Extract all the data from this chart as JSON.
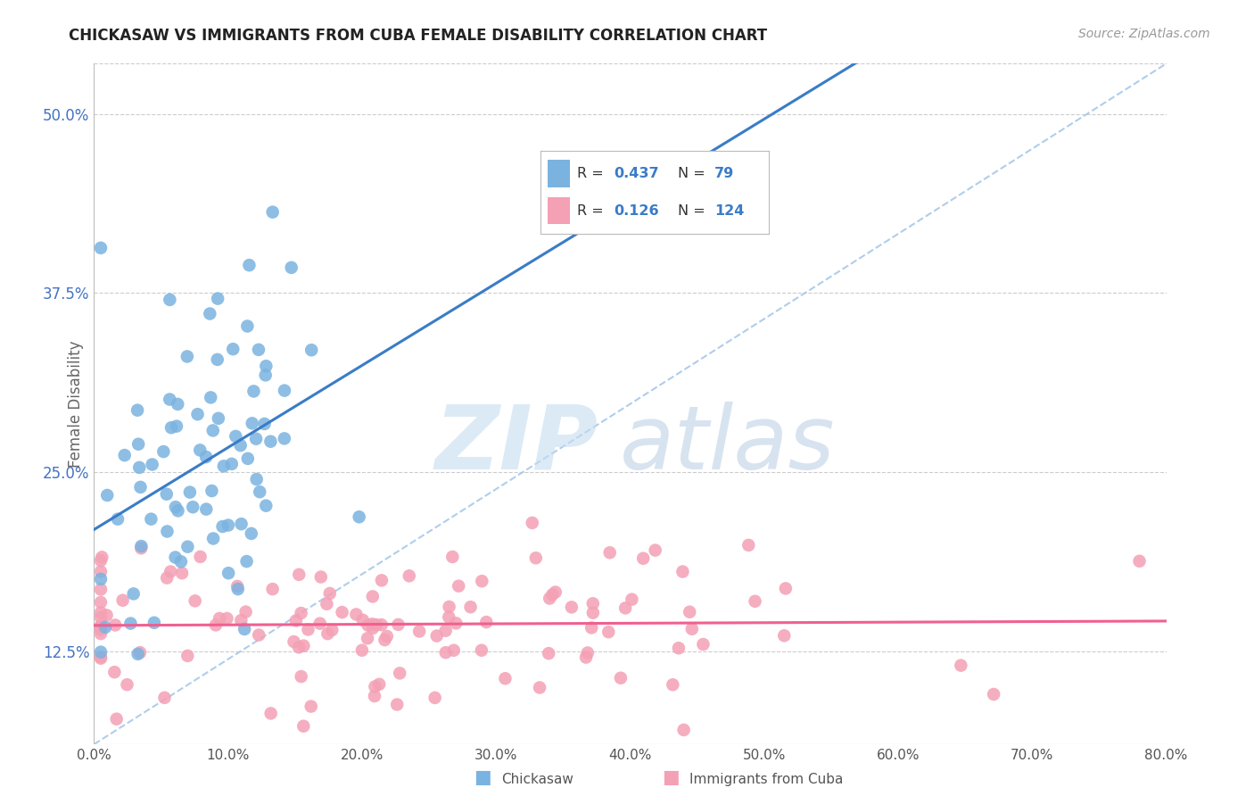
{
  "title": "CHICKASAW VS IMMIGRANTS FROM CUBA FEMALE DISABILITY CORRELATION CHART",
  "source": "Source: ZipAtlas.com",
  "ylabel": "Female Disability",
  "ytick_vals": [
    0.125,
    0.25,
    0.375,
    0.5
  ],
  "xmin": 0.0,
  "xmax": 0.8,
  "ymin": 0.06,
  "ymax": 0.535,
  "chickasaw_color": "#7ab3e0",
  "cuba_color": "#f4a0b5",
  "chickasaw_line_color": "#3a7cc7",
  "cuba_line_color": "#f06090",
  "dashed_line_color": "#a8c8e8",
  "R_chickasaw": 0.437,
  "N_chickasaw": 79,
  "R_cuba": 0.126,
  "N_cuba": 124,
  "legend_label_1": "Chickasaw",
  "legend_label_2": "Immigrants from Cuba",
  "watermark_zip": "ZIP",
  "watermark_atlas": "atlas",
  "background_color": "#ffffff",
  "grid_color": "#dddddd",
  "title_fontsize": 12,
  "source_fontsize": 10,
  "tick_label_fontsize": 11,
  "ytick_color": "#4472c4"
}
